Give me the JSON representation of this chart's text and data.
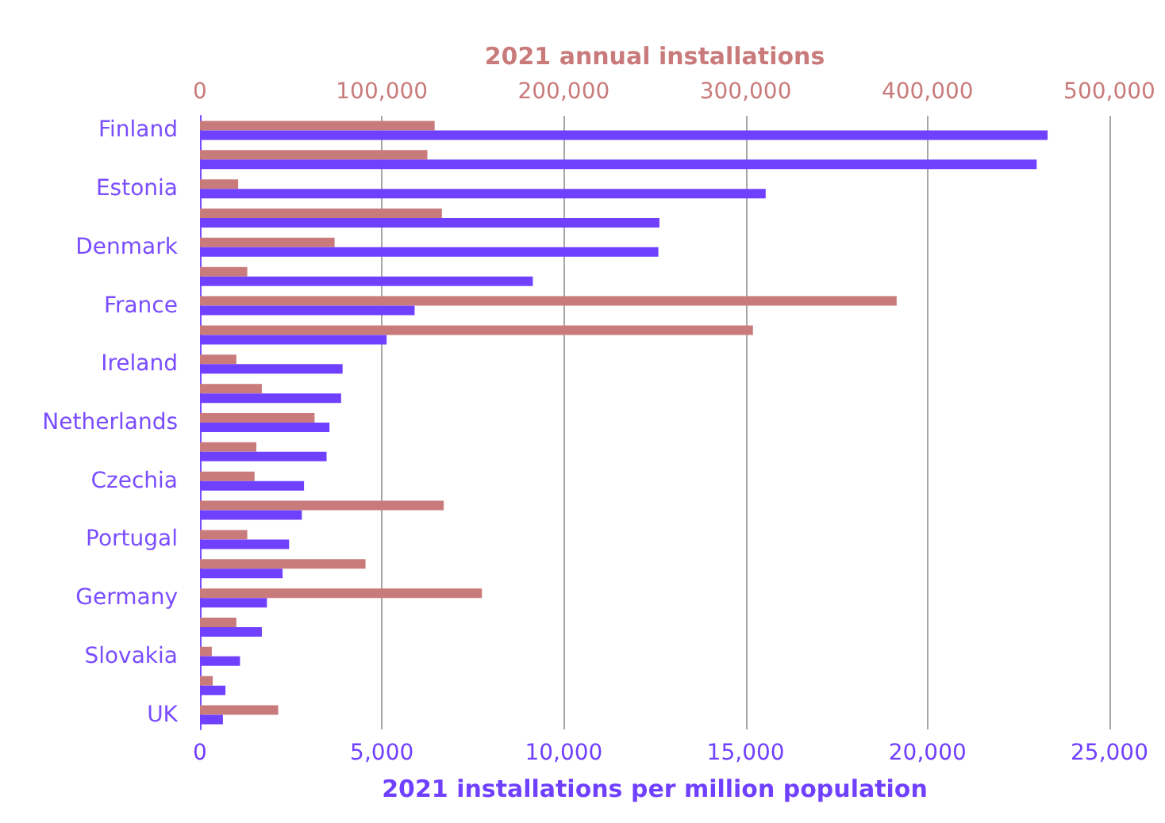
{
  "chart_data": {
    "type": "bar",
    "orientation": "horizontal",
    "xlabel": "2021 installations per million population",
    "x2label": "2021 annual installations",
    "categories": [
      "Finland",
      null,
      "Estonia",
      null,
      "Denmark",
      null,
      "France",
      null,
      "Ireland",
      null,
      "Netherlands",
      null,
      "Czechia",
      null,
      "Portugal",
      null,
      "Germany",
      null,
      "Slovakia",
      null,
      "UK"
    ],
    "series": [
      {
        "color": "#c97b7b",
        "axis": "x2",
        "values": [
          129000,
          125000,
          21000,
          133000,
          74000,
          26000,
          383000,
          304000,
          20000,
          34000,
          63000,
          31000,
          30000,
          134000,
          26000,
          91000,
          155000,
          20000,
          6500,
          7000,
          43000
        ]
      },
      {
        "color": "#7040ff",
        "values": [
          23300,
          23000,
          15550,
          12630,
          12600,
          9150,
          5900,
          5130,
          3920,
          3880,
          3560,
          3480,
          2860,
          2800,
          2450,
          2270,
          1840,
          1700,
          1100,
          700,
          630
        ]
      }
    ],
    "xlim": [
      0,
      25000
    ],
    "xticks": [
      {
        "value": 0,
        "label": "0"
      },
      {
        "value": 5000,
        "label": "5,000"
      },
      {
        "value": 10000,
        "label": "10,000"
      },
      {
        "value": 15000,
        "label": "15,000"
      },
      {
        "value": 20000,
        "label": "20,000"
      },
      {
        "value": 25000,
        "label": "25,000"
      }
    ],
    "x2lim": [
      0,
      500000
    ],
    "x2ticks": [
      {
        "value": 0,
        "label": "0"
      },
      {
        "value": 100000,
        "label": "100,000"
      },
      {
        "value": 200000,
        "label": "200,000"
      },
      {
        "value": 300000,
        "label": "300,000"
      },
      {
        "value": 400000,
        "label": "400,000"
      },
      {
        "value": 500000,
        "label": "500,000"
      }
    ],
    "grid": "x"
  }
}
